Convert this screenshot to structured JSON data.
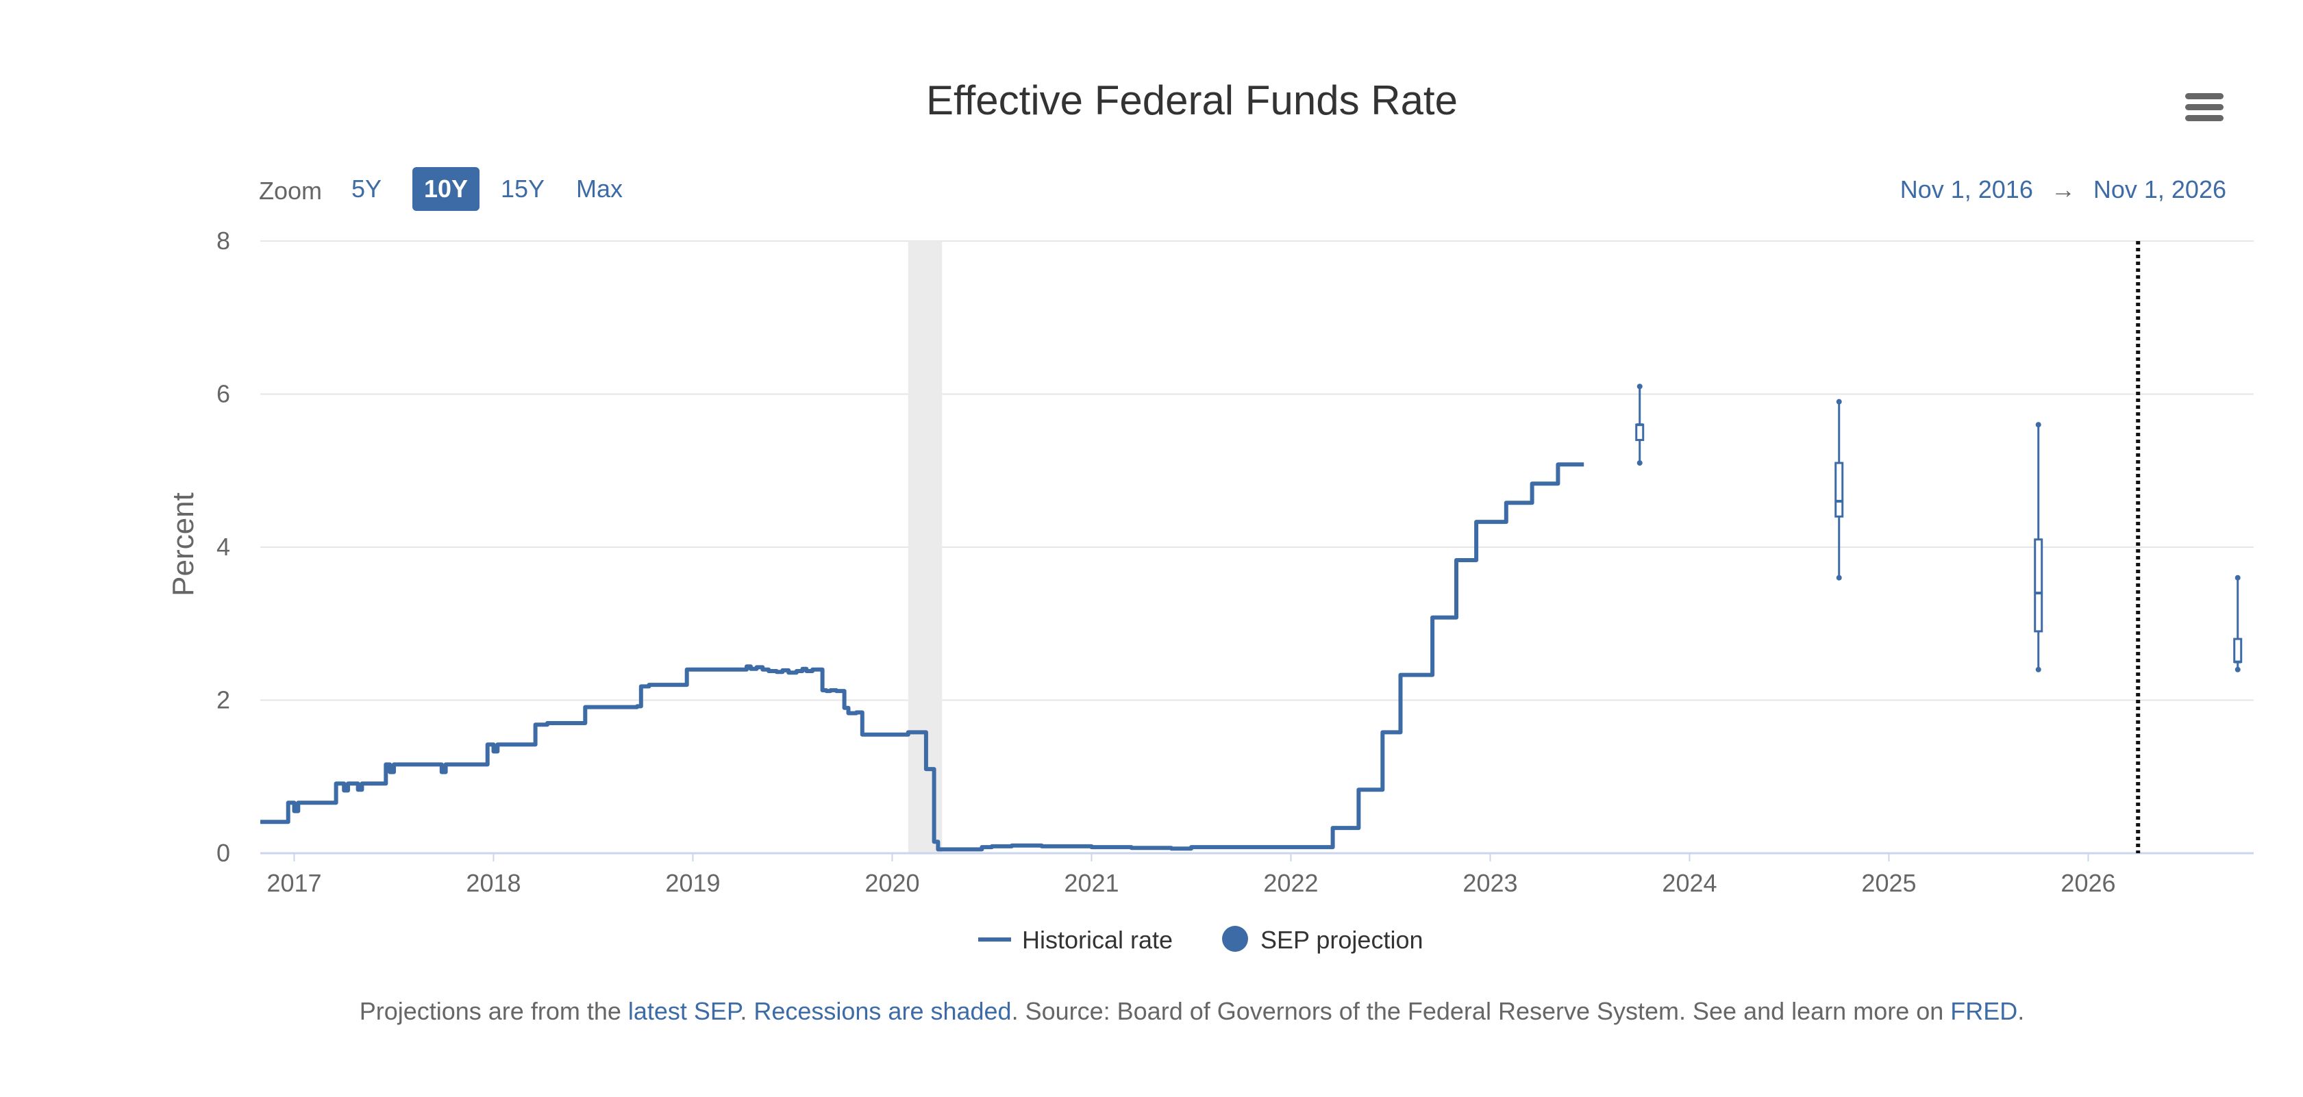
{
  "chart_data": {
    "type": "line",
    "title": "Effective Federal Funds Rate",
    "ylabel": "Percent",
    "xlabel": "",
    "ylim": [
      0,
      8
    ],
    "yticks": [
      0,
      2,
      4,
      6,
      8
    ],
    "ytick_labels": [
      "0",
      "2",
      "4",
      "6",
      "8"
    ],
    "xlim": [
      2016.83,
      2026.83
    ],
    "xticks": [
      2017,
      2018,
      2019,
      2020,
      2021,
      2022,
      2023,
      2024,
      2025,
      2026
    ],
    "xtick_labels": [
      "2017",
      "2018",
      "2019",
      "2020",
      "2021",
      "2022",
      "2023",
      "2024",
      "2025",
      "2026"
    ],
    "grid": true,
    "recessions": [
      {
        "start": 2020.08,
        "end": 2020.25
      }
    ],
    "vertical_marker": {
      "x": 2026.25,
      "style": "dotted"
    },
    "series": [
      {
        "name": "Historical rate",
        "type": "step-line",
        "x": [
          2016.83,
          2016.95,
          2016.97,
          2017.0,
          2017.02,
          2017.2,
          2017.21,
          2017.25,
          2017.27,
          2017.3,
          2017.32,
          2017.34,
          2017.44,
          2017.46,
          2017.48,
          2017.5,
          2017.72,
          2017.74,
          2017.76,
          2017.95,
          2017.97,
          2018.0,
          2018.02,
          2018.2,
          2018.21,
          2018.27,
          2018.44,
          2018.46,
          2018.7,
          2018.72,
          2018.74,
          2018.78,
          2018.95,
          2018.97,
          2019.25,
          2019.27,
          2019.29,
          2019.32,
          2019.35,
          2019.38,
          2019.42,
          2019.45,
          2019.48,
          2019.52,
          2019.55,
          2019.57,
          2019.6,
          2019.65,
          2019.67,
          2019.69,
          2019.72,
          2019.76,
          2019.78,
          2019.82,
          2019.85,
          2019.92,
          2020.06,
          2020.08,
          2020.15,
          2020.17,
          2020.19,
          2020.21,
          2020.23,
          2020.3,
          2020.45,
          2020.5,
          2020.6,
          2020.75,
          2020.9,
          2021.0,
          2021.2,
          2021.4,
          2021.5,
          2021.6,
          2021.8,
          2022.0,
          2022.1,
          2022.2,
          2022.21,
          2022.33,
          2022.34,
          2022.45,
          2022.46,
          2022.54,
          2022.55,
          2022.7,
          2022.71,
          2022.82,
          2022.83,
          2022.92,
          2022.93,
          2023.07,
          2023.08,
          2023.2,
          2023.21,
          2023.32,
          2023.34,
          2023.47
        ],
        "y": [
          0.41,
          0.41,
          0.66,
          0.55,
          0.66,
          0.66,
          0.91,
          0.82,
          0.91,
          0.91,
          0.83,
          0.91,
          0.91,
          1.16,
          1.06,
          1.16,
          1.16,
          1.06,
          1.16,
          1.16,
          1.42,
          1.33,
          1.42,
          1.42,
          1.68,
          1.7,
          1.7,
          1.91,
          1.91,
          1.92,
          2.18,
          2.2,
          2.2,
          2.4,
          2.4,
          2.44,
          2.41,
          2.43,
          2.4,
          2.38,
          2.37,
          2.39,
          2.36,
          2.38,
          2.41,
          2.38,
          2.4,
          2.13,
          2.12,
          2.13,
          2.12,
          1.9,
          1.83,
          1.84,
          1.55,
          1.55,
          1.55,
          1.58,
          1.58,
          1.1,
          1.1,
          0.15,
          0.05,
          0.05,
          0.08,
          0.09,
          0.1,
          0.09,
          0.09,
          0.08,
          0.07,
          0.06,
          0.08,
          0.08,
          0.08,
          0.08,
          0.08,
          0.08,
          0.33,
          0.33,
          0.83,
          0.83,
          1.58,
          1.58,
          2.33,
          2.33,
          3.08,
          3.08,
          3.83,
          3.83,
          4.33,
          4.33,
          4.58,
          4.58,
          4.83,
          4.83,
          5.08,
          5.08
        ]
      },
      {
        "name": "SEP projection",
        "type": "boxplot",
        "points": [
          {
            "x": 2023.75,
            "low": 5.1,
            "q1": 5.4,
            "median": 5.6,
            "q3": 5.6,
            "high": 6.1
          },
          {
            "x": 2024.75,
            "low": 3.6,
            "q1": 4.4,
            "median": 4.6,
            "q3": 5.1,
            "high": 5.9
          },
          {
            "x": 2025.75,
            "low": 2.4,
            "q1": 2.9,
            "median": 3.4,
            "q3": 4.1,
            "high": 5.6
          },
          {
            "x": 2026.75,
            "low": 2.4,
            "q1": 2.5,
            "median": 2.5,
            "q3": 2.8,
            "high": 3.6
          }
        ]
      }
    ]
  },
  "header": {
    "menu_icon": "hamburger-menu-icon"
  },
  "zoom": {
    "label": "Zoom",
    "options": [
      "5Y",
      "10Y",
      "15Y",
      "Max"
    ],
    "selected": "10Y"
  },
  "range": {
    "from": "Nov 1, 2016",
    "arrow": "→",
    "to": "Nov 1, 2026"
  },
  "legend": {
    "historical": "Historical rate",
    "sep": "SEP projection"
  },
  "caption": {
    "prefix": "Projections are from the ",
    "link_sep": "latest SEP",
    "sep1": ". ",
    "link_recessions": "Recessions are shaded",
    "middle": ". Source: Board of Governors of the Federal Reserve System. See and learn more on ",
    "link_fred": "FRED",
    "suffix": "."
  },
  "colors": {
    "accent": "#3d6ba5",
    "grid": "#e6e6e6",
    "recession": "#ebebeb",
    "text": "#333333",
    "muted": "#666666"
  }
}
